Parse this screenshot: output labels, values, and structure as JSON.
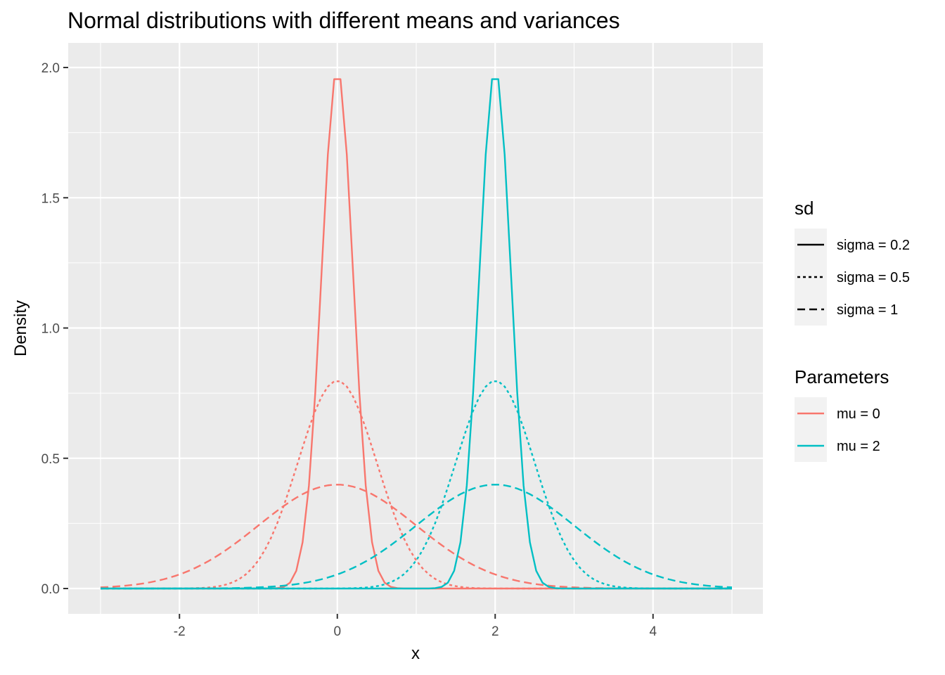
{
  "chart_data": {
    "type": "line",
    "title": "Normal distributions with different means and variances",
    "xlabel": "x",
    "ylabel": "Density",
    "xlim": [
      -3,
      5
    ],
    "ylim": [
      0,
      2
    ],
    "x_ticks": [
      -2,
      0,
      2,
      4
    ],
    "y_ticks": [
      0.0,
      0.5,
      1.0,
      1.5,
      2.0
    ],
    "x_tick_labels": [
      "-2",
      "0",
      "2",
      "4"
    ],
    "y_tick_labels": [
      "0.0",
      "0.5",
      "1.0",
      "1.5",
      "2.0"
    ],
    "grid": true,
    "legend_position": "right",
    "legends": [
      {
        "title": "sd",
        "entries": [
          {
            "label": "sigma = 0.2",
            "linetype": "solid",
            "sigma": 0.2
          },
          {
            "label": "sigma = 0.5",
            "linetype": "dotted",
            "sigma": 0.5
          },
          {
            "label": "sigma = 1",
            "linetype": "dashed",
            "sigma": 1
          }
        ]
      },
      {
        "title": "Parameters",
        "entries": [
          {
            "label": "mu = 0",
            "color": "#F8766D",
            "mu": 0
          },
          {
            "label": "mu = 2",
            "color": "#00BFC4",
            "mu": 2
          }
        ]
      }
    ],
    "series": [
      {
        "mu": 0,
        "sigma": 0.2,
        "color": "#F8766D",
        "linetype": "solid",
        "peak": 1.99
      },
      {
        "mu": 0,
        "sigma": 0.5,
        "color": "#F8766D",
        "linetype": "dotted",
        "peak": 0.8
      },
      {
        "mu": 0,
        "sigma": 1,
        "color": "#F8766D",
        "linetype": "dashed",
        "peak": 0.4
      },
      {
        "mu": 2,
        "sigma": 0.2,
        "color": "#00BFC4",
        "linetype": "solid",
        "peak": 1.99
      },
      {
        "mu": 2,
        "sigma": 0.5,
        "color": "#00BFC4",
        "linetype": "dotted",
        "peak": 0.8
      },
      {
        "mu": 2,
        "sigma": 1,
        "color": "#00BFC4",
        "linetype": "dashed",
        "peak": 0.4
      }
    ]
  }
}
